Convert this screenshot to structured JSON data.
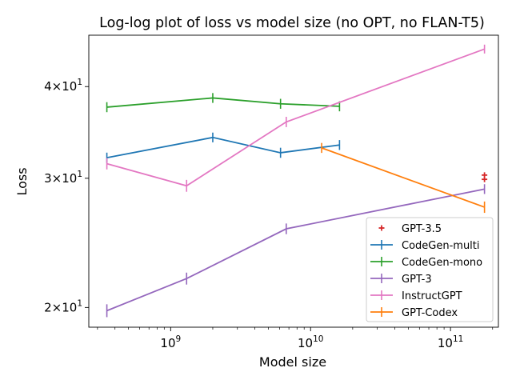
{
  "chart_data": {
    "type": "line",
    "title": "Log-log plot of loss vs model size (no OPT, no FLAN-T5)",
    "xlabel": "Model size",
    "ylabel": "Loss",
    "xscale": "log",
    "yscale": "log",
    "xlim": [
      260000000.0,
      220000000000.0
    ],
    "ylim": [
      18.8,
      47.0
    ],
    "x_major_ticks": [
      {
        "value": 1000000000.0,
        "base": "10",
        "exp": "9"
      },
      {
        "value": 10000000000.0,
        "base": "10",
        "exp": "10"
      },
      {
        "value": 100000000000.0,
        "base": "10",
        "exp": "11"
      }
    ],
    "y_major_ticks": [
      {
        "value": 20,
        "mant": "2",
        "base": "10",
        "exp": "1"
      },
      {
        "value": 30,
        "mant": "3",
        "base": "10",
        "exp": "1"
      },
      {
        "value": 40,
        "mant": "4",
        "base": "10",
        "exp": "1"
      }
    ],
    "grid": false,
    "legend_position": "lower right",
    "series": [
      {
        "name": "GPT-3.5",
        "kind": "scatter",
        "color": "#d62728",
        "marker": "plus",
        "x": [
          175000000000.0,
          175000000000.0
        ],
        "y": [
          30.3,
          29.9
        ]
      },
      {
        "name": "CodeGen-multi",
        "kind": "errorline",
        "color": "#1f77b4",
        "x": [
          350000000.0,
          2000000000.0,
          6100000000.0,
          16100000000.0
        ],
        "y": [
          32.0,
          34.1,
          32.5,
          33.3
        ],
        "err": [
          0.35,
          0.35,
          0.35,
          0.35
        ]
      },
      {
        "name": "CodeGen-mono",
        "kind": "errorline",
        "color": "#2ca02c",
        "x": [
          350000000.0,
          2000000000.0,
          6100000000.0,
          16100000000.0
        ],
        "y": [
          37.5,
          38.6,
          37.9,
          37.6
        ],
        "err": [
          0.4,
          0.4,
          0.4,
          0.4
        ]
      },
      {
        "name": "GPT-3",
        "kind": "errorline",
        "color": "#9467bd",
        "x": [
          350000000.0,
          1300000000.0,
          6700000000.0,
          175000000000.0
        ],
        "y": [
          19.8,
          21.9,
          25.6,
          29.0
        ],
        "err": [
          0.3,
          0.3,
          0.3,
          0.3
        ]
      },
      {
        "name": "InstructGPT",
        "kind": "errorline",
        "color": "#e377c2",
        "x": [
          350000000.0,
          1300000000.0,
          6700000000.0,
          175000000000.0
        ],
        "y": [
          31.4,
          29.3,
          35.8,
          45.0
        ],
        "err": [
          0.4,
          0.4,
          0.4,
          0.4
        ]
      },
      {
        "name": "GPT-Codex",
        "kind": "errorline",
        "color": "#ff7f0e",
        "x": [
          12000000000.0,
          175000000000.0
        ],
        "y": [
          33.0,
          27.4
        ],
        "err": [
          0.35,
          0.35
        ]
      }
    ]
  }
}
